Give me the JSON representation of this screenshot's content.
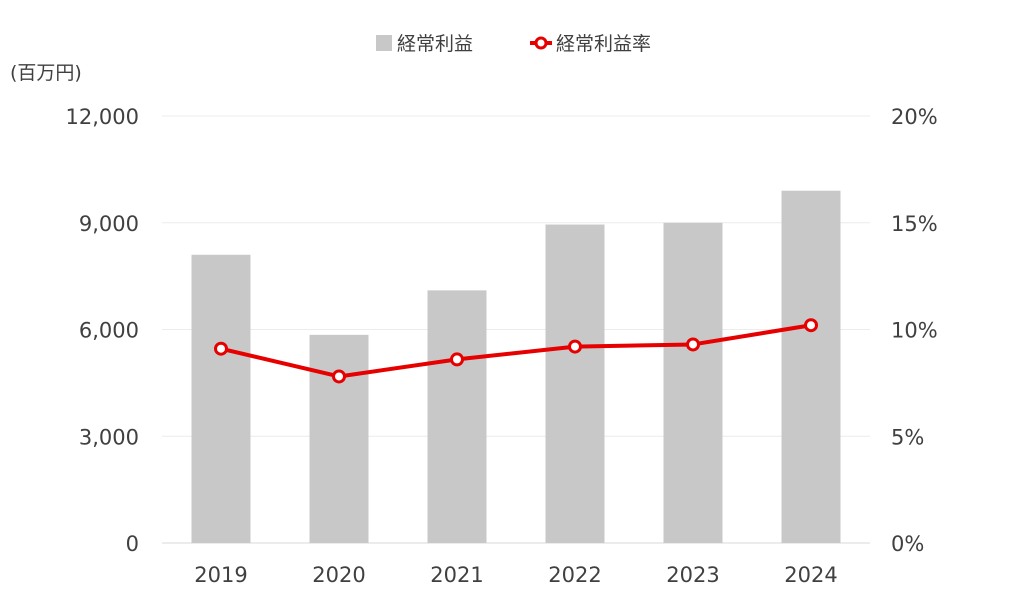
{
  "chart_data": {
    "type": "bar",
    "unit_label": "(百万円)",
    "categories": [
      "2019",
      "2020",
      "2021",
      "2022",
      "2023",
      "2024"
    ],
    "series": [
      {
        "name": "経常利益",
        "type": "bar",
        "axis": "left",
        "color": "#c8c8c8",
        "values": [
          8100,
          5850,
          7100,
          8950,
          9000,
          9900
        ]
      },
      {
        "name": "経常利益率",
        "type": "line",
        "axis": "right",
        "color": "#e60000",
        "values": [
          9.1,
          7.8,
          8.6,
          9.2,
          9.3,
          10.2
        ]
      }
    ],
    "y_left": {
      "min": 0,
      "max": 12000,
      "ticks": [
        "0",
        "3,000",
        "6,000",
        "9,000",
        "12,000"
      ],
      "tick_values": [
        0,
        3000,
        6000,
        9000,
        12000
      ]
    },
    "y_right": {
      "min": 0,
      "max": 20,
      "ticks": [
        "0%",
        "5%",
        "10%",
        "15%",
        "20%"
      ],
      "tick_values": [
        0,
        5,
        10,
        15,
        20
      ]
    },
    "grid": true,
    "legend_position": "top"
  }
}
